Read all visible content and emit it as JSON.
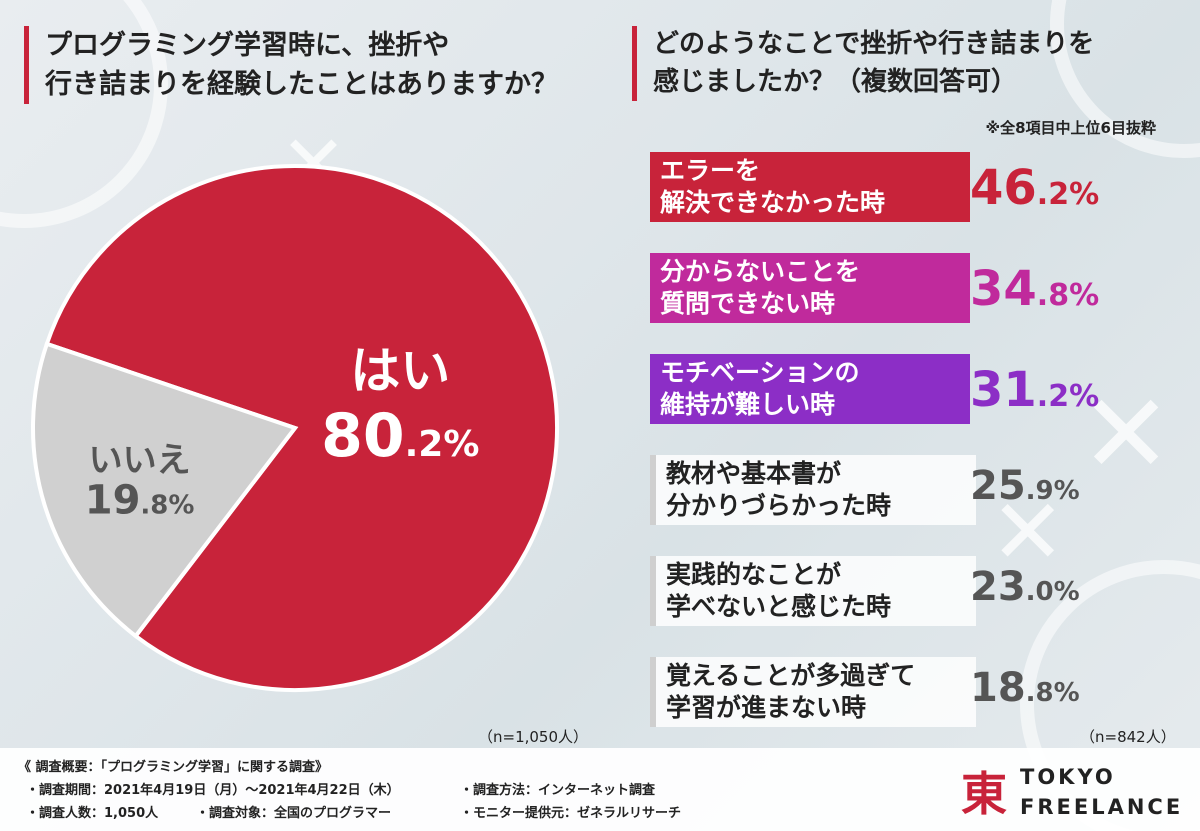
{
  "left_question": {
    "line1": "プログラミング学習時に、挫折や",
    "line2": "行き詰まりを経験したことはありますか？"
  },
  "right_question": {
    "line1": "どのようなことで挫折や行き詰まりを",
    "line2": "感じましたか？（複数回答可）",
    "note": "※全8項目中上位6目抜粋"
  },
  "chart_data": [
    {
      "type": "pie",
      "categories": [
        "はい",
        "いいえ"
      ],
      "values": [
        80.2,
        19.8
      ],
      "value_labels_big": [
        "80",
        "19"
      ],
      "value_labels_small": [
        ".2%",
        ".8%"
      ],
      "colors": [
        "#c8233a",
        "#d0d0d0"
      ],
      "label_colors": [
        "#ffffff",
        "#555555"
      ],
      "n_label": "（n=1,050人）"
    },
    {
      "type": "bar",
      "categories": [
        [
          "エラーを",
          "解決できなかった時"
        ],
        [
          "分からないことを",
          "質問できない時"
        ],
        [
          "モチベーションの",
          "維持が難しい時"
        ],
        [
          "教材や基本書が",
          "分かりづらかった時"
        ],
        [
          "実践的なことが",
          "学べないと感じた時"
        ],
        [
          "覚えることが多過ぎて",
          "学習が進まない時"
        ]
      ],
      "values": [
        46.2,
        34.8,
        31.2,
        25.9,
        23.0,
        18.8
      ],
      "value_labels_big": [
        "46",
        "34",
        "31",
        "25",
        "23",
        "18"
      ],
      "value_labels_small": [
        ".2%",
        ".8%",
        ".2%",
        ".9%",
        ".0%",
        ".8%"
      ],
      "colors": [
        "#c8233a",
        "#c02a9c",
        "#8c2ec6",
        "#555555",
        "#555555",
        "#555555"
      ],
      "highlighted": [
        true,
        true,
        true,
        false,
        false,
        false
      ],
      "n_label": "（n=842人）"
    }
  ],
  "footer": {
    "summary": "《 調査概要：「プログラミング学習」に関する調査》",
    "period": "・調査期間：2021年4月19日（月）～2021年4月22日（木）",
    "method": "・調査方法：インターネット調査",
    "count": "・調査人数：1,050人",
    "target": "・調査対象：全国のプログラマー",
    "provider": "・モニター提供元：ゼネラルリサーチ"
  },
  "logo": {
    "mark": "東",
    "line1": "TOKYO",
    "line2": "FREELANCE",
    "color": "#c8233a"
  }
}
